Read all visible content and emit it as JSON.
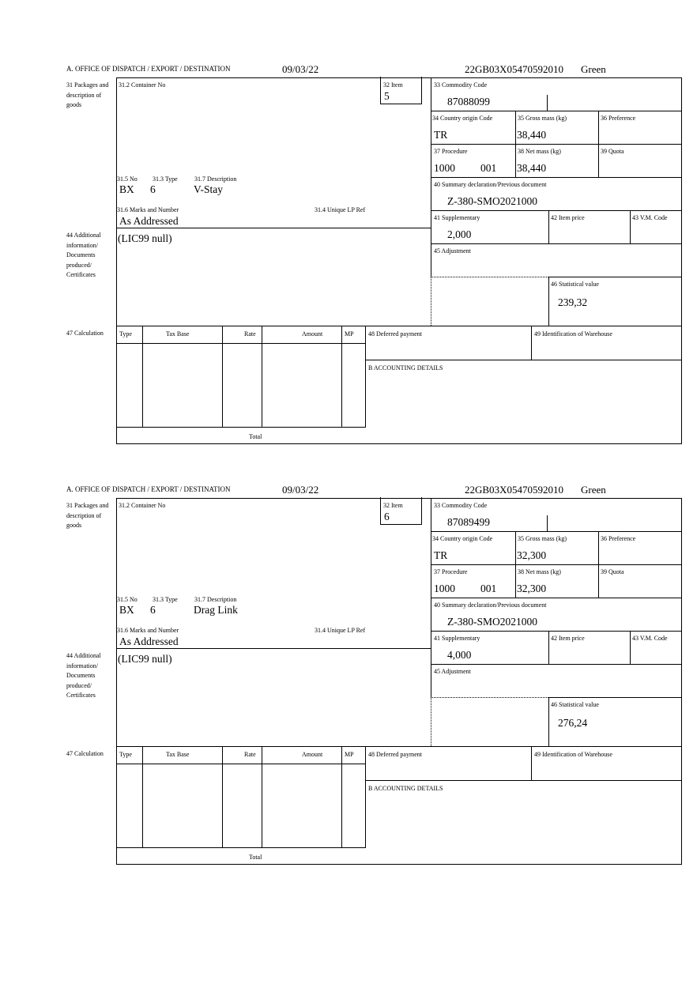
{
  "labels": {
    "office": "A.  OFFICE OF DISPATCH / EXPORT / DESTINATION",
    "packages": "31 Packages and description of goods",
    "container": "31.2 Container No",
    "item": "32 Item",
    "no": "31.5 No",
    "type": "31.3 Type",
    "description": "31.7 Description",
    "marks": "31.6 Marks and Number",
    "unique_ref": "31.4 Unique LP Ref",
    "commodity": "33 Commodity Code",
    "country": "34 Country origin Code",
    "gross": "35 Gross mass (kg)",
    "preference": "36 Preference",
    "procedure": "37 Procedure",
    "net": "38 Net mass (kg)",
    "quota": "39 Quota",
    "summary": "40 Summary declaration/Previous document",
    "supplementary": "41 Supplementary",
    "item_price": "42 Item price",
    "vm_code": "43 V.M. Code",
    "adjustment": "45 Adjustment",
    "statistical": "46 Statistical value",
    "additional": "44 Additional information/ Documents produced/ Certificates",
    "calculation": "47 Calculation",
    "col_type": "Type",
    "col_tax_base": "Tax Base",
    "col_rate": "Rate",
    "col_amount": "Amount",
    "col_mp": "MP",
    "deferred": "48 Deferred payment",
    "warehouse": "49 Identification of Warehouse",
    "accounting": "B ACCOUNTING DETAILS",
    "total": "Total"
  },
  "forms": [
    {
      "date": "09/03/22",
      "reference": "22GB03X05470592010",
      "route": "Green",
      "item": "5",
      "pkg_kind": "BX",
      "pkg_count": "6",
      "description": "V-Stay",
      "marks": "As Addressed",
      "commodity": "87088099",
      "country": "TR",
      "gross": "38,440",
      "procedure": "1000",
      "procedure_add": "001",
      "net": "38,440",
      "summary": "Z-380-SMO2021000",
      "supplementary": "2,000",
      "statistical": "239,32",
      "additional": "(LIC99 null)"
    },
    {
      "date": "09/03/22",
      "reference": "22GB03X05470592010",
      "route": "Green",
      "item": "6",
      "pkg_kind": "BX",
      "pkg_count": "6",
      "description": "Drag Link",
      "marks": "As Addressed",
      "commodity": "87089499",
      "country": "TR",
      "gross": "32,300",
      "procedure": "1000",
      "procedure_add": "001",
      "net": "32,300",
      "summary": "Z-380-SMO2021000",
      "supplementary": "4,000",
      "statistical": "276,24",
      "additional": "(LIC99 null)"
    }
  ]
}
